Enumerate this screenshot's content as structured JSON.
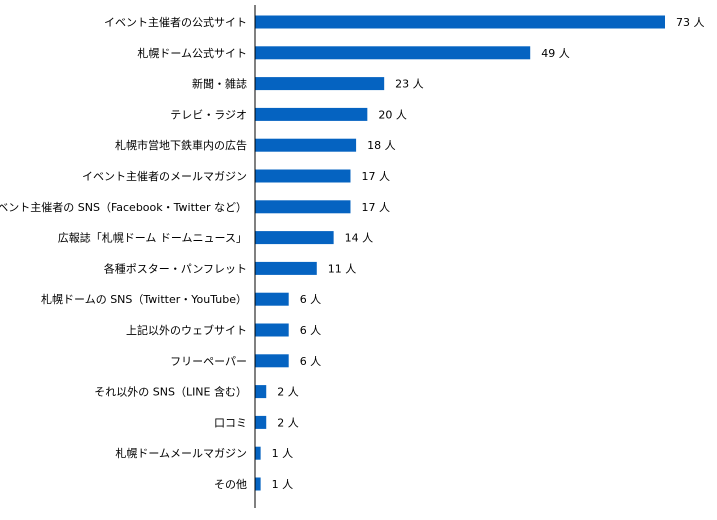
{
  "chart_data": {
    "type": "bar",
    "orientation": "horizontal",
    "categories": [
      "イベント主催者の公式サイト",
      "札幌ドーム公式サイト",
      "新聞・雑誌",
      "テレビ・ラジオ",
      "札幌市営地下鉄車内の広告",
      "イベント主催者のメールマガジン",
      "イベント主催者の SNS（Facebook・Twitter など）",
      "広報誌「札幌ドーム ドームニュース」",
      "各種ポスター・パンフレット",
      "札幌ドームの SNS（Twitter・YouTube）",
      "上記以外のウェブサイト",
      "フリーペーパー",
      "それ以外の SNS（LINE 含む）",
      "口コミ",
      "札幌ドームメールマガジン",
      "その他"
    ],
    "values": [
      73,
      49,
      23,
      20,
      18,
      17,
      17,
      14,
      11,
      6,
      6,
      6,
      2,
      2,
      1,
      1
    ],
    "value_labels": [
      "73 人",
      "49 人",
      "23 人",
      "20 人",
      "18 人",
      "17 人",
      "17 人",
      "14 人",
      "11 人",
      "6 人",
      "6 人",
      "6 人",
      "2 人",
      "2 人",
      "1 人",
      "1 人"
    ],
    "xlim": [
      0,
      73
    ],
    "bar_color": "#0563C1",
    "axis_color": "#000000",
    "grid": false,
    "legend": "none",
    "title": "",
    "xlabel": "",
    "ylabel": ""
  }
}
